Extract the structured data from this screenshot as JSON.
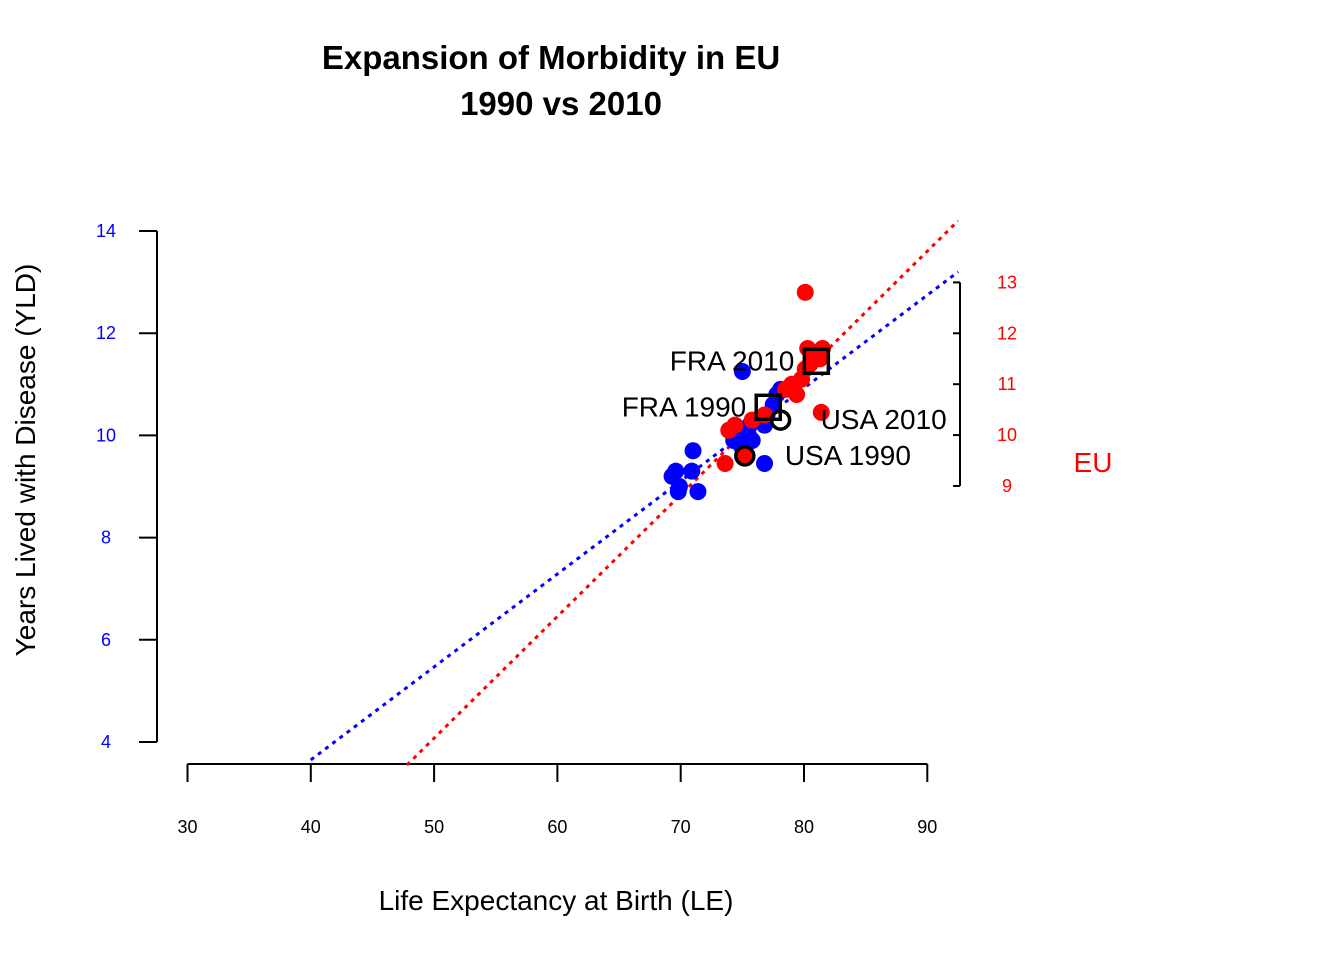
{
  "chart_data": {
    "type": "scatter",
    "title_line1": "Expansion of Morbidity in EU",
    "title_line2": "1990 vs 2010",
    "xlabel": "Life Expectancy at Birth (LE)",
    "ylabel": "Years Lived with Disease (YLD)",
    "xlim": [
      30,
      90
    ],
    "ylim": [
      4,
      14
    ],
    "x_ticks": [
      "30",
      "40",
      "50",
      "60",
      "70",
      "80",
      "90"
    ],
    "y_ticks_left": [
      "4",
      "6",
      "8",
      "10",
      "12",
      "14"
    ],
    "y_ticks_right": [
      "9",
      "10",
      "11",
      "12",
      "13"
    ],
    "right_axis_label": "EU",
    "colors": {
      "series_1990": "#0000ff",
      "series_2010": "#ff0000",
      "highlight": "#000000"
    },
    "series": [
      {
        "color": "#0000ff",
        "points": [
          [
            69.3,
            9.2
          ],
          [
            69.6,
            9.3
          ],
          [
            69.8,
            8.9
          ],
          [
            69.9,
            9.0
          ],
          [
            70.9,
            9.3
          ],
          [
            71.0,
            9.7
          ],
          [
            71.4,
            8.9
          ],
          [
            75.0,
            11.25
          ],
          [
            74.3,
            9.9
          ],
          [
            74.9,
            9.8
          ],
          [
            75.2,
            10.1
          ],
          [
            75.5,
            10.0
          ],
          [
            75.6,
            10.2
          ],
          [
            75.8,
            9.9
          ],
          [
            76.3,
            10.3
          ],
          [
            76.8,
            10.2
          ],
          [
            77.0,
            10.4
          ],
          [
            77.5,
            10.6
          ],
          [
            77.8,
            10.8
          ],
          [
            78.1,
            10.9
          ],
          [
            76.8,
            9.45
          ]
        ]
      },
      {
        "color": "#ff0000",
        "points": [
          [
            73.6,
            9.45
          ],
          [
            73.9,
            10.1
          ],
          [
            74.4,
            10.2
          ],
          [
            75.1,
            9.6
          ],
          [
            75.8,
            10.3
          ],
          [
            76.8,
            10.4
          ],
          [
            78.5,
            10.9
          ],
          [
            79.0,
            11.0
          ],
          [
            79.4,
            10.8
          ],
          [
            79.8,
            11.1
          ],
          [
            80.1,
            11.3
          ],
          [
            80.1,
            12.8
          ],
          [
            80.3,
            11.7
          ],
          [
            80.5,
            11.4
          ],
          [
            80.8,
            11.5
          ],
          [
            81.0,
            11.6
          ],
          [
            81.3,
            11.5
          ],
          [
            81.4,
            10.45
          ],
          [
            81.5,
            11.7
          ]
        ]
      }
    ],
    "fit_lines": [
      {
        "color": "#0000ff",
        "from": [
          40.0,
          3.65
        ],
        "to": [
          92.5,
          13.2
        ]
      },
      {
        "color": "#ff0000",
        "from": [
          47.8,
          3.55
        ],
        "to": [
          92.5,
          14.2
        ]
      }
    ],
    "highlights": [
      {
        "label": "FRA 1990",
        "shape": "square",
        "x": 77.1,
        "y": 10.55,
        "anchor": "end"
      },
      {
        "label": "FRA 2010",
        "shape": "square",
        "x": 81.0,
        "y": 11.45,
        "anchor": "end"
      },
      {
        "label": "USA 1990",
        "shape": "circle",
        "x": 75.2,
        "y": 9.6,
        "anchor": "start"
      },
      {
        "label": "USA 2010",
        "shape": "circle",
        "x": 78.1,
        "y": 10.3,
        "anchor": "start"
      }
    ]
  }
}
